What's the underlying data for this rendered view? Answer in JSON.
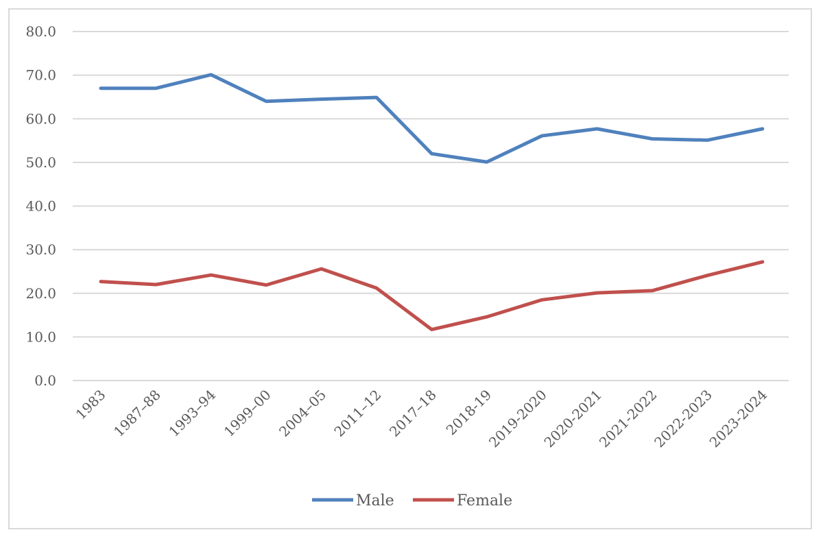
{
  "chart_data": {
    "type": "line",
    "title": "",
    "xlabel": "",
    "ylabel": "",
    "ylim": [
      0,
      80
    ],
    "y_ticks": [
      "0.0",
      "10.0",
      "20.0",
      "30.0",
      "40.0",
      "50.0",
      "60.0",
      "70.0",
      "80.0"
    ],
    "grid": "horizontal",
    "legend_position": "bottom",
    "categories": [
      "1983",
      "1987–88",
      "1993–94",
      "1999–00",
      "2004–05",
      "2011–12",
      "2017–18",
      "2018-19",
      "2019-2020",
      "2020-2021",
      "2021-2022",
      "2022-2023",
      "2023-2024"
    ],
    "series": [
      {
        "name": "Male",
        "color": "#4f81bd",
        "values": [
          67.0,
          67.0,
          70.1,
          64.0,
          64.5,
          64.9,
          52.0,
          50.1,
          56.1,
          57.7,
          55.4,
          55.1,
          57.7
        ]
      },
      {
        "name": "Female",
        "color": "#c0504d",
        "values": [
          22.7,
          22.0,
          24.2,
          21.9,
          25.6,
          21.2,
          11.7,
          14.6,
          18.5,
          20.1,
          20.6,
          24.1,
          27.2
        ]
      }
    ]
  }
}
